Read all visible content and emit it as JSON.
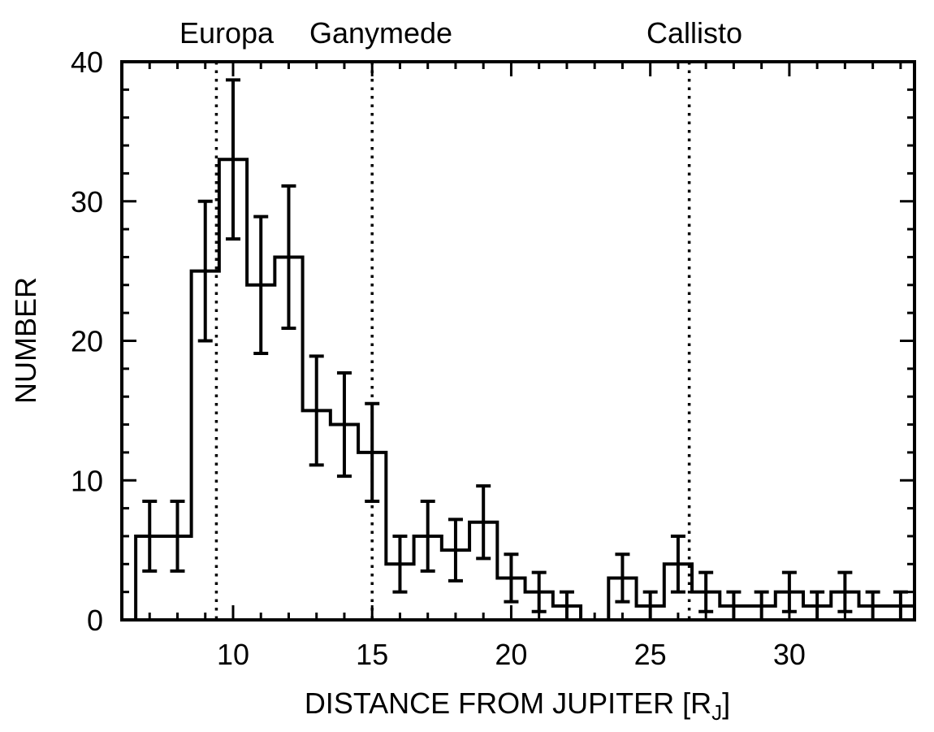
{
  "chart_data": {
    "type": "histogram",
    "xlabel": "DISTANCE FROM JUPITER [R",
    "xlabel_subscript": "J",
    "xlabel_close": "]",
    "ylabel": "NUMBER",
    "xlim": [
      6,
      34.5
    ],
    "ylim": [
      0,
      40
    ],
    "x_ticks": [
      10,
      15,
      20,
      25,
      30
    ],
    "y_ticks": [
      0,
      10,
      20,
      30,
      40
    ],
    "x_minor_step": 1,
    "y_minor_step": 2,
    "grid": false,
    "bin_edges": [
      6.5,
      7.5,
      8.5,
      9.5,
      10.5,
      11.5,
      12.5,
      13.5,
      14.5,
      15.5,
      16.5,
      17.5,
      18.5,
      19.5,
      20.5,
      21.5,
      22.5,
      23.5,
      24.5,
      25.5,
      26.5,
      27.5,
      28.5,
      29.5,
      30.5,
      31.5,
      32.5,
      33.5,
      34.5
    ],
    "counts": [
      6,
      6,
      25,
      33,
      24,
      26,
      15,
      14,
      12,
      4,
      6,
      5,
      7,
      3,
      2,
      1,
      0,
      3,
      1,
      4,
      2,
      1,
      1,
      2,
      1,
      2,
      1,
      1
    ],
    "error_bars": [
      {
        "x": 7,
        "low": 3.5,
        "high": 8.5
      },
      {
        "x": 8,
        "low": 3.5,
        "high": 8.5
      },
      {
        "x": 9,
        "low": 20,
        "high": 30
      },
      {
        "x": 10,
        "low": 27.3,
        "high": 38.7
      },
      {
        "x": 11,
        "low": 19.1,
        "high": 28.9
      },
      {
        "x": 12,
        "low": 20.9,
        "high": 31.1
      },
      {
        "x": 13,
        "low": 11.1,
        "high": 18.9
      },
      {
        "x": 14,
        "low": 10.3,
        "high": 17.7
      },
      {
        "x": 15,
        "low": 8.5,
        "high": 15.5
      },
      {
        "x": 16,
        "low": 2,
        "high": 6
      },
      {
        "x": 17,
        "low": 3.5,
        "high": 8.5
      },
      {
        "x": 18,
        "low": 2.8,
        "high": 7.2
      },
      {
        "x": 19,
        "low": 4.4,
        "high": 9.6
      },
      {
        "x": 20,
        "low": 1.3,
        "high": 4.7
      },
      {
        "x": 21,
        "low": 0.6,
        "high": 3.4
      },
      {
        "x": 22,
        "low": 0,
        "high": 2
      },
      {
        "x": 24,
        "low": 1.3,
        "high": 4.7
      },
      {
        "x": 25,
        "low": 0,
        "high": 2
      },
      {
        "x": 26,
        "low": 2,
        "high": 6
      },
      {
        "x": 27,
        "low": 0.6,
        "high": 3.4
      },
      {
        "x": 28,
        "low": 0,
        "high": 2
      },
      {
        "x": 29,
        "low": 0,
        "high": 2
      },
      {
        "x": 30,
        "low": 0.6,
        "high": 3.4
      },
      {
        "x": 31,
        "low": 0,
        "high": 2
      },
      {
        "x": 32,
        "low": 0.6,
        "high": 3.4
      },
      {
        "x": 33,
        "low": 0,
        "high": 2
      },
      {
        "x": 34,
        "low": 0,
        "high": 2
      }
    ],
    "reference_lines": [
      {
        "x": 9.4,
        "label": "Europa",
        "style": "dotted"
      },
      {
        "x": 15.0,
        "label": "Ganymede",
        "style": "dotted"
      },
      {
        "x": 26.4,
        "label": "Callisto",
        "style": "dotted"
      }
    ],
    "colors": {
      "line": "#000000",
      "background": "#ffffff"
    }
  }
}
